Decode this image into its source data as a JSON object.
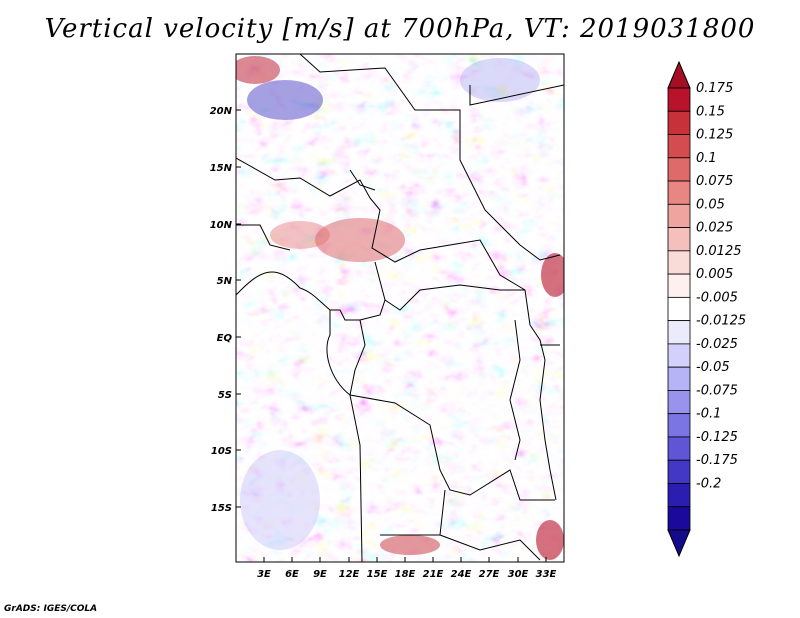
{
  "title": "Vertical velocity [m/s] at 700hPa, VT: 2019031800",
  "credit": "GrADS: IGES/COLA",
  "lat_labels": [
    "20N",
    "15N",
    "10N",
    "5N",
    "EQ",
    "5S",
    "10S",
    "15S"
  ],
  "lon_labels": [
    "3E",
    "6E",
    "9E",
    "12E",
    "15E",
    "18E",
    "21E",
    "24E",
    "27E",
    "30E",
    "33E"
  ],
  "colorbar": {
    "labels": [
      "0.175",
      "0.15",
      "0.125",
      "0.1",
      "0.075",
      "0.05",
      "0.025",
      "0.0125",
      "0.005",
      "-0.005",
      "-0.0125",
      "-0.025",
      "-0.05",
      "-0.075",
      "-0.1",
      "-0.125",
      "-0.175",
      "-0.2"
    ],
    "colors": [
      "#b8132a",
      "#c8303a",
      "#d44c4f",
      "#de6a69",
      "#e88683",
      "#f0a4a0",
      "#f5c0bb",
      "#f9dcd8",
      "#fdf0ee",
      "#ffffff",
      "#ecebfd",
      "#d3d1fb",
      "#b6b3f6",
      "#9894ee",
      "#7b75e4",
      "#5f56d7",
      "#4338c6",
      "#2a1db0",
      "#1a0a9c"
    ],
    "max_color": "#a50f24",
    "min_color": "#140a8c"
  }
}
